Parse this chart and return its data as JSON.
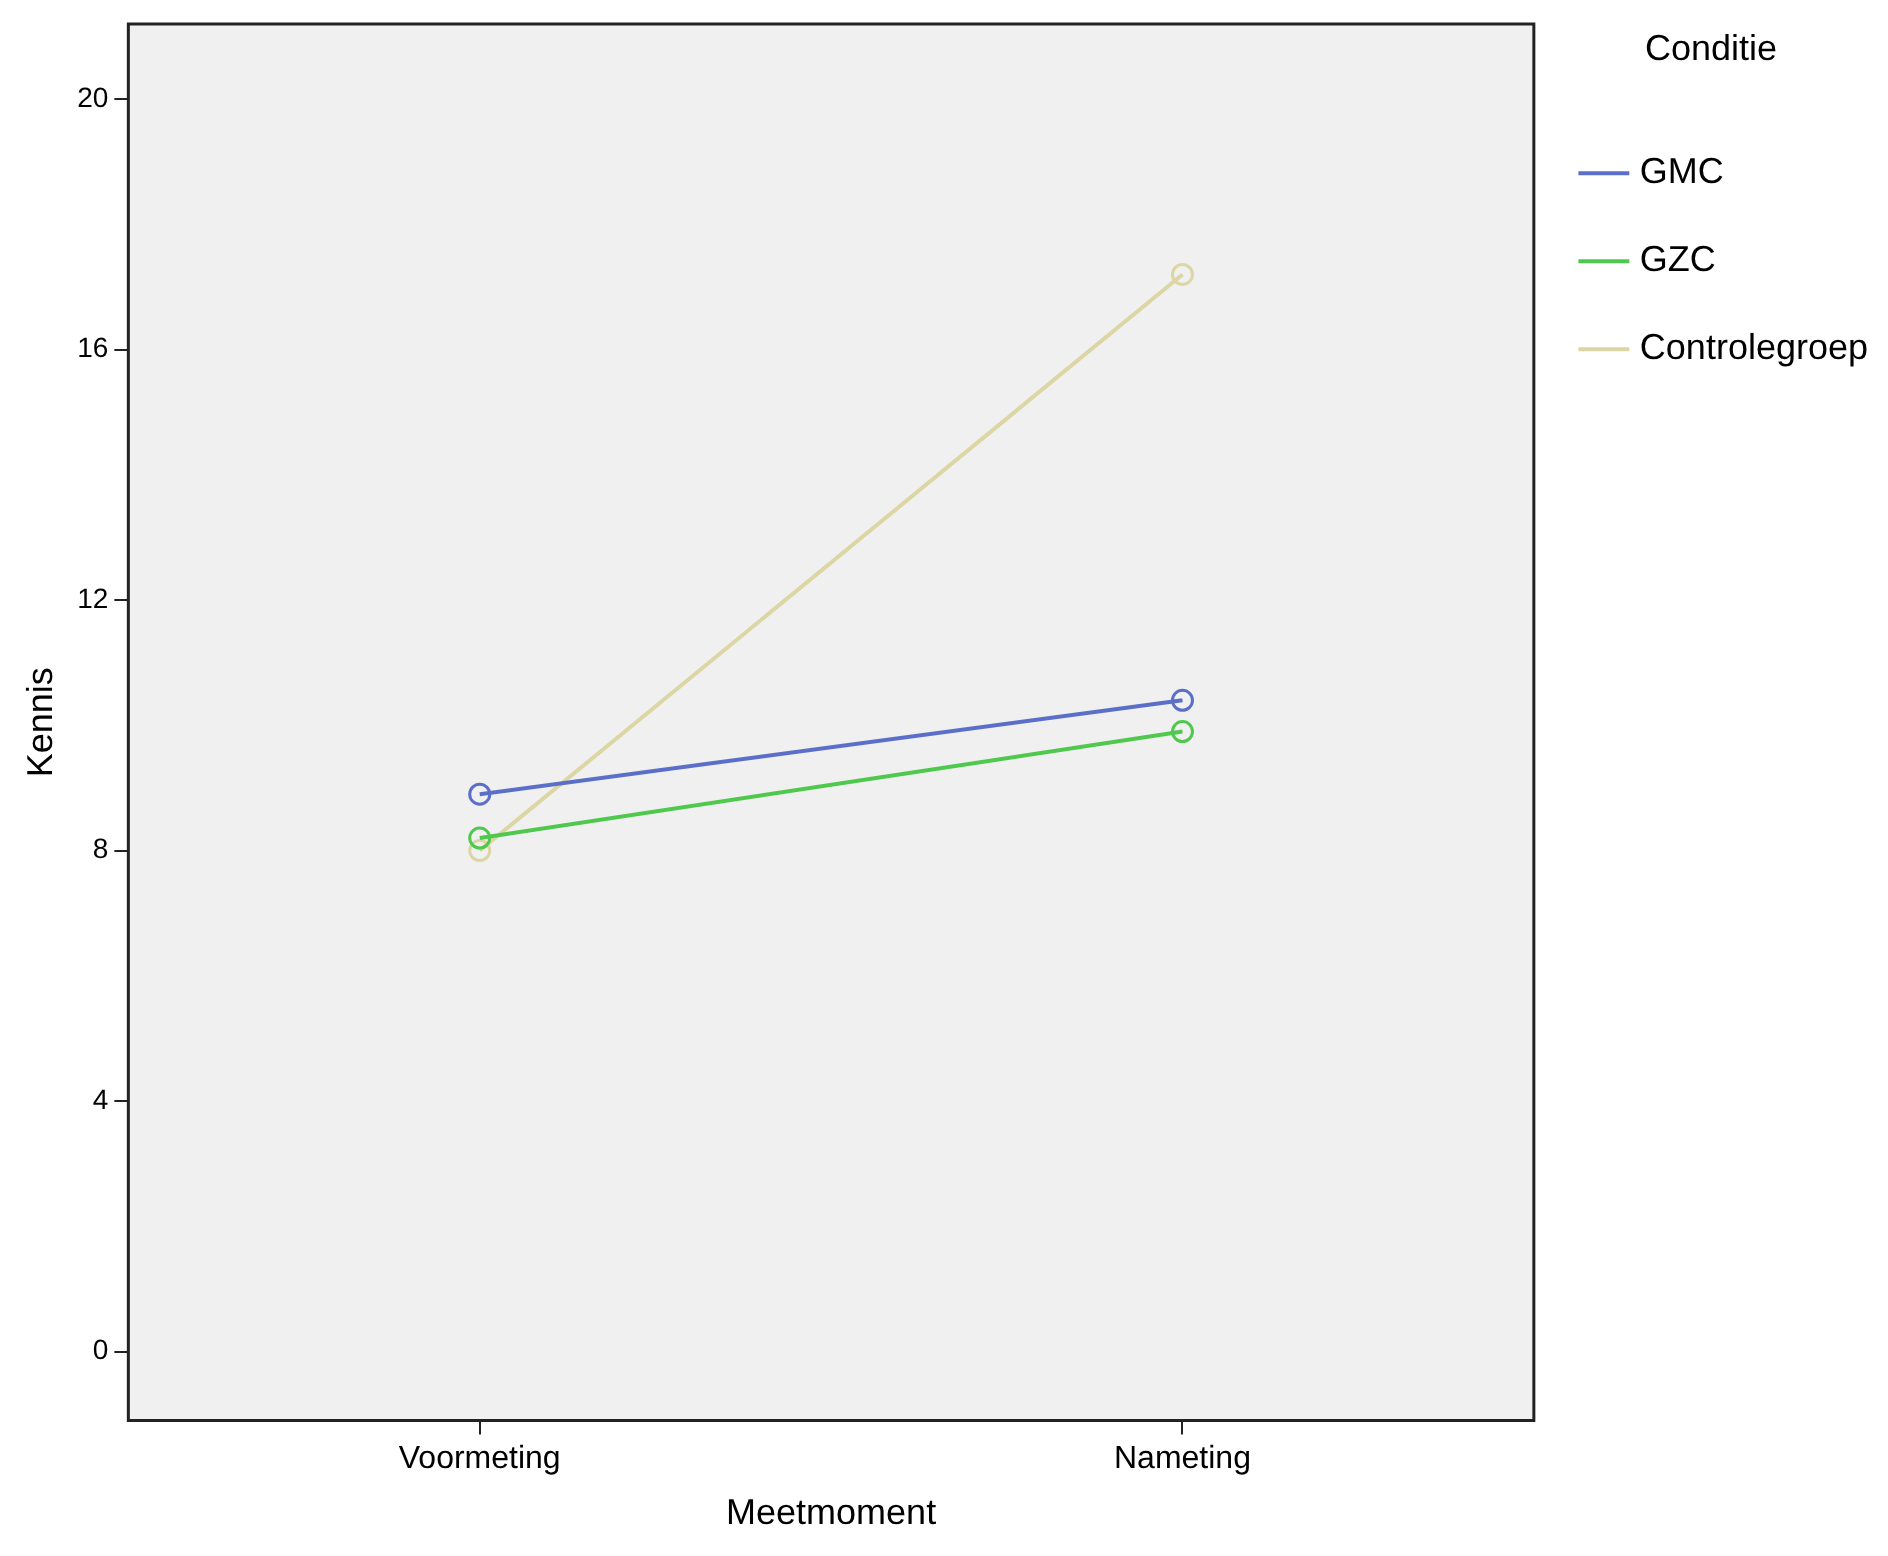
{
  "chart_data": {
    "type": "line",
    "xlabel": "Meetmoment",
    "ylabel": "Kennis",
    "legend_title": "Conditie",
    "categories": [
      "Voormeting",
      "Nameting"
    ],
    "series": [
      {
        "name": "GMC",
        "color": "#5b6fc9",
        "values": [
          8.9,
          10.4
        ]
      },
      {
        "name": "GZC",
        "color": "#4ec94e",
        "values": [
          8.2,
          9.9
        ]
      },
      {
        "name": "Controlegroep",
        "color": "#dcd6a4",
        "values": [
          8.0,
          17.2
        ]
      }
    ],
    "ylim": [
      -1.1,
      21.2
    ],
    "yticks": [
      0,
      4,
      8,
      12,
      16,
      20
    ],
    "legend": "right",
    "marker": "circle",
    "line_style": "solid",
    "grid": false
  }
}
